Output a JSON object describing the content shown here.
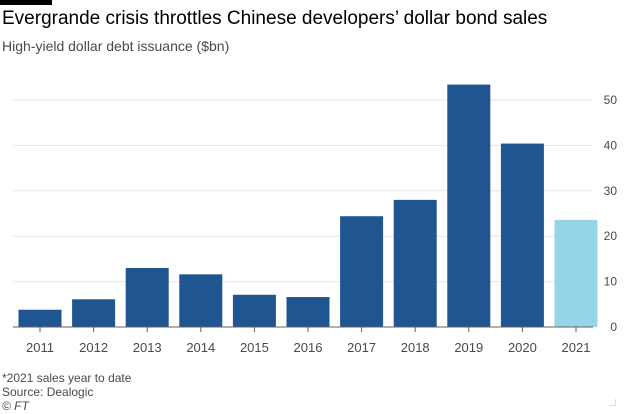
{
  "header": {
    "title": "Evergrande crisis throttles Chinese developers’ dollar bond sales",
    "subtitle": "High-yield dollar debt issuance ($bn)"
  },
  "footer": {
    "footnote": "*2021 sales year to date",
    "source": "Source: Dealogic",
    "credit": "© FT"
  },
  "chart_data": {
    "type": "bar",
    "title": "Evergrande crisis throttles Chinese developers’ dollar bond sales",
    "subtitle": "High-yield dollar debt issuance ($bn)",
    "categories": [
      "2011",
      "2012",
      "2013",
      "2014",
      "2015",
      "2016",
      "2017",
      "2018",
      "2019",
      "2020",
      "2021"
    ],
    "values": [
      3.8,
      6.1,
      13.0,
      11.6,
      7.1,
      6.6,
      24.4,
      28.0,
      53.4,
      40.4,
      23.6
    ],
    "highlight": [
      "2021"
    ],
    "yticks": [
      0,
      10,
      20,
      30,
      40,
      50
    ],
    "ylim": [
      0,
      55
    ],
    "y_axis_side": "right",
    "grid": true,
    "colors": {
      "bar": "#1f5591",
      "highlight_bar": "#96d4e8",
      "grid": "#e6e6e6",
      "axis": "#66605c",
      "text": "#4a4a4a"
    }
  }
}
